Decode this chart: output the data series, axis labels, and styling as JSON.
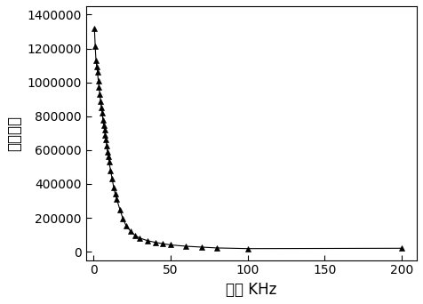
{
  "title": "",
  "xlabel": "频率 KHz",
  "ylabel": "介电常数",
  "xlim": [
    -5,
    210
  ],
  "ylim": [
    -50000,
    1450000
  ],
  "xticks": [
    0,
    50,
    100,
    150,
    200
  ],
  "yticks": [
    0,
    200000,
    400000,
    600000,
    800000,
    1000000,
    1200000,
    1400000
  ],
  "x_data": [
    0.5,
    1.0,
    1.5,
    2.0,
    2.5,
    3.0,
    3.5,
    4.0,
    4.5,
    5.0,
    5.5,
    6.0,
    6.5,
    7.0,
    7.5,
    8.0,
    8.5,
    9.0,
    9.5,
    10.0,
    11.0,
    12.0,
    13.0,
    14.0,
    15.0,
    17.0,
    19.0,
    21.0,
    24.0,
    27.0,
    30.0,
    35.0,
    40.0,
    45.0,
    50.0,
    60.0,
    70.0,
    80.0,
    100.0,
    200.0
  ],
  "y_data": [
    1320000,
    1215000,
    1130000,
    1095000,
    1060000,
    1010000,
    970000,
    930000,
    890000,
    850000,
    820000,
    780000,
    745000,
    720000,
    690000,
    660000,
    625000,
    590000,
    560000,
    530000,
    480000,
    430000,
    380000,
    340000,
    310000,
    250000,
    195000,
    155000,
    120000,
    95000,
    80000,
    65000,
    55000,
    47000,
    40000,
    32000,
    27000,
    22000,
    18000,
    20000
  ],
  "line_color": "#000000",
  "marker": "^",
  "marker_color": "#000000",
  "marker_size": 5,
  "line_width": 0.8,
  "background_color": "#ffffff",
  "grid": false,
  "xlabel_fontsize": 12,
  "ylabel_fontsize": 12,
  "tick_fontsize": 10
}
